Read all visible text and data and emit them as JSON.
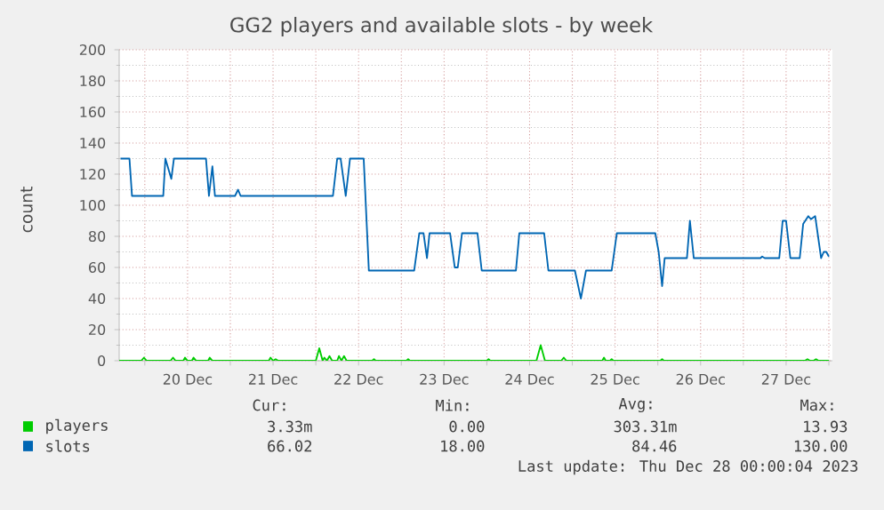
{
  "chart_data": {
    "type": "line",
    "title": "GG2 players and available slots - by week",
    "ylabel": "count",
    "xlim": [
      "2023-12-19T16:48",
      "2023-12-28T01:00"
    ],
    "ylim": [
      0,
      200
    ],
    "xticks": [
      {
        "value": "2023-12-20T00:00",
        "label": null
      },
      {
        "value": "2023-12-20T12:00",
        "label": "20 Dec"
      },
      {
        "value": "2023-12-21T00:00",
        "label": null
      },
      {
        "value": "2023-12-21T12:00",
        "label": "21 Dec"
      },
      {
        "value": "2023-12-22T00:00",
        "label": null
      },
      {
        "value": "2023-12-22T12:00",
        "label": "22 Dec"
      },
      {
        "value": "2023-12-23T00:00",
        "label": null
      },
      {
        "value": "2023-12-23T12:00",
        "label": "23 Dec"
      },
      {
        "value": "2023-12-24T00:00",
        "label": null
      },
      {
        "value": "2023-12-24T12:00",
        "label": "24 Dec"
      },
      {
        "value": "2023-12-25T00:00",
        "label": null
      },
      {
        "value": "2023-12-25T12:00",
        "label": "25 Dec"
      },
      {
        "value": "2023-12-26T00:00",
        "label": null
      },
      {
        "value": "2023-12-26T12:00",
        "label": "26 Dec"
      },
      {
        "value": "2023-12-27T00:00",
        "label": null
      },
      {
        "value": "2023-12-27T12:00",
        "label": "27 Dec"
      },
      {
        "value": "2023-12-28T00:00",
        "label": null
      }
    ],
    "yticks": [
      0,
      20,
      40,
      60,
      80,
      100,
      120,
      140,
      160,
      180,
      200
    ],
    "grid": true,
    "legend": "bottom",
    "series": [
      {
        "name": "players",
        "color": "#00cc00",
        "x": [
          "2023-12-19T16:48",
          "2023-12-19T23:00",
          "2023-12-19T23:45",
          "2023-12-20T00:30",
          "2023-12-20T07:12",
          "2023-12-20T07:55",
          "2023-12-20T08:38",
          "2023-12-20T10:48",
          "2023-12-20T11:17",
          "2023-12-20T12:00",
          "2023-12-20T13:12",
          "2023-12-20T13:41",
          "2023-12-20T14:24",
          "2023-12-20T17:46",
          "2023-12-20T18:14",
          "2023-12-20T18:58",
          "2023-12-21T10:48",
          "2023-12-21T11:17",
          "2023-12-21T12:00",
          "2023-12-21T12:43",
          "2023-12-21T13:26",
          "2023-12-22T00:00",
          "2023-12-22T00:58",
          "2023-12-22T01:55",
          "2023-12-22T02:24",
          "2023-12-22T03:07",
          "2023-12-22T03:50",
          "2023-12-22T04:34",
          "2023-12-22T06:00",
          "2023-12-22T06:29",
          "2023-12-22T07:12",
          "2023-12-22T07:55",
          "2023-12-22T08:38",
          "2023-12-22T15:50",
          "2023-12-22T16:19",
          "2023-12-22T16:48",
          "2023-12-23T01:26",
          "2023-12-23T01:55",
          "2023-12-23T02:24",
          "2023-12-24T00:00",
          "2023-12-24T00:29",
          "2023-12-24T00:58",
          "2023-12-24T13:55",
          "2023-12-24T15:07",
          "2023-12-24T16:19",
          "2023-12-24T20:53",
          "2023-12-24T21:36",
          "2023-12-24T22:19",
          "2023-12-25T08:24",
          "2023-12-25T08:53",
          "2023-12-25T09:22",
          "2023-12-25T10:34",
          "2023-12-25T11:02",
          "2023-12-25T11:31",
          "2023-12-26T00:43",
          "2023-12-26T01:12",
          "2023-12-26T01:41",
          "2023-12-27T17:17",
          "2023-12-27T18:00",
          "2023-12-27T18:43",
          "2023-12-27T19:41",
          "2023-12-27T20:24",
          "2023-12-27T21:07",
          "2023-12-27T23:31",
          "2023-12-28T00:00"
        ],
        "values": [
          0,
          0,
          2,
          0,
          0,
          2,
          0,
          0,
          2,
          0,
          0,
          2,
          0,
          0,
          2,
          0,
          0,
          2,
          0,
          1,
          0,
          0,
          8,
          0,
          2,
          0,
          3,
          0,
          0,
          3,
          0,
          3,
          0,
          0,
          1,
          0,
          0,
          1,
          0,
          0,
          1,
          0,
          0,
          10,
          0,
          0,
          2,
          0,
          0,
          2,
          0,
          0,
          1,
          0,
          0,
          1,
          0,
          0,
          1,
          0,
          0,
          1,
          0,
          0,
          0
        ]
      },
      {
        "name": "slots",
        "color": "#0066b3",
        "x": [
          "2023-12-19T17:10",
          "2023-12-19T19:41",
          "2023-12-19T20:24",
          "2023-12-20T05:10",
          "2023-12-20T05:46",
          "2023-12-20T07:26",
          "2023-12-20T08:10",
          "2023-12-20T17:10",
          "2023-12-20T18:00",
          "2023-12-20T18:58",
          "2023-12-20T19:41",
          "2023-12-21T01:19",
          "2023-12-21T02:10",
          "2023-12-21T02:53",
          "2023-12-22T04:48",
          "2023-12-22T06:00",
          "2023-12-22T06:58",
          "2023-12-22T08:24",
          "2023-12-22T09:36",
          "2023-12-22T13:26",
          "2023-12-22T14:53",
          "2023-12-23T03:36",
          "2023-12-23T05:02",
          "2023-12-23T06:14",
          "2023-12-23T07:12",
          "2023-12-23T07:55",
          "2023-12-23T13:41",
          "2023-12-23T15:00",
          "2023-12-23T15:50",
          "2023-12-23T17:02",
          "2023-12-23T21:22",
          "2023-12-23T22:34",
          "2023-12-24T08:10",
          "2023-12-24T09:07",
          "2023-12-24T16:05",
          "2023-12-24T17:17",
          "2023-12-25T00:43",
          "2023-12-25T02:24",
          "2023-12-25T03:50",
          "2023-12-25T11:02",
          "2023-12-25T12:29",
          "2023-12-25T23:17",
          "2023-12-26T00:14",
          "2023-12-26T01:12",
          "2023-12-26T01:55",
          "2023-12-26T08:10",
          "2023-12-26T09:00",
          "2023-12-26T10:05",
          "2023-12-27T04:48",
          "2023-12-27T05:17",
          "2023-12-27T06:00",
          "2023-12-27T10:05",
          "2023-12-27T11:02",
          "2023-12-27T12:00",
          "2023-12-27T13:12",
          "2023-12-27T15:50",
          "2023-12-27T16:48",
          "2023-12-27T18:14",
          "2023-12-27T18:58",
          "2023-12-27T20:10",
          "2023-12-27T21:50",
          "2023-12-27T22:34",
          "2023-12-27T23:17",
          "2023-12-28T00:00"
        ],
        "values": [
          130,
          130,
          106,
          106,
          130,
          117,
          130,
          130,
          106,
          125,
          106,
          106,
          110,
          106,
          106,
          130,
          130,
          106,
          130,
          130,
          58,
          58,
          82,
          82,
          66,
          82,
          82,
          60,
          60,
          82,
          82,
          58,
          58,
          82,
          82,
          58,
          58,
          40,
          58,
          58,
          82,
          82,
          70,
          48,
          66,
          66,
          90,
          66,
          66,
          67,
          66,
          66,
          90,
          90,
          66,
          66,
          88,
          93,
          91,
          93,
          66,
          70,
          70,
          67
        ]
      }
    ],
    "annotations": [
      "Cur:",
      "Min:",
      "Avg:",
      "Max:",
      "3.33m",
      "0.00",
      "303.31m",
      "13.93",
      "66.02",
      "18.00",
      "84.46",
      "130.00",
      "Last update: Thu Dec 28 00:00:04 2023"
    ]
  }
}
